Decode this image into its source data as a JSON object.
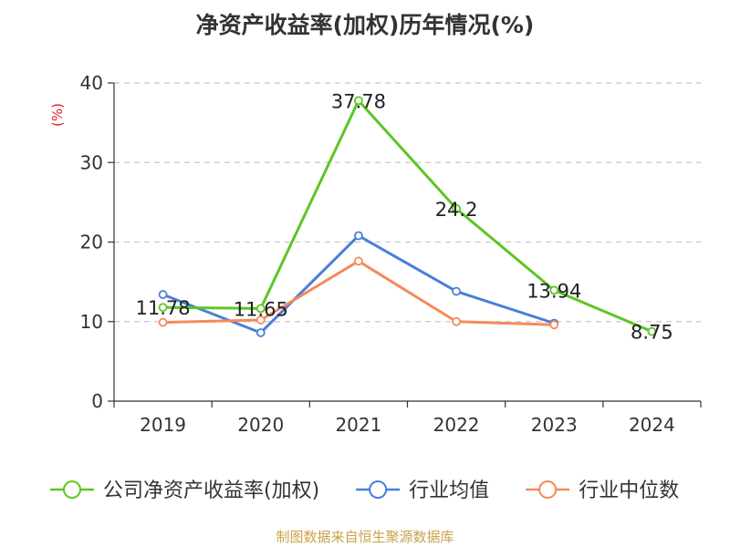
{
  "chart_data": {
    "type": "line",
    "title": "净资产收益率(加权)历年情况(%)",
    "ylabel": "(%)",
    "categories": [
      "2019",
      "2020",
      "2021",
      "2022",
      "2023",
      "2024"
    ],
    "ylim": [
      0,
      40
    ],
    "yticks": [
      0,
      10,
      20,
      30,
      40
    ],
    "grid": true,
    "legend_position": "bottom",
    "series": [
      {
        "name": "公司净资产收益率(加权)",
        "color": "#5cc623",
        "values": [
          11.78,
          11.65,
          37.78,
          24.2,
          13.94,
          8.75
        ],
        "labels": [
          "11.78",
          "11.65",
          "37.78",
          "24.2",
          "13.94",
          "8.75"
        ]
      },
      {
        "name": "行业均值",
        "color": "#4a7fd9",
        "values": [
          13.4,
          8.6,
          20.8,
          13.8,
          9.8,
          null
        ]
      },
      {
        "name": "行业中位数",
        "color": "#f58a5a",
        "values": [
          9.9,
          10.2,
          17.6,
          10.0,
          9.6,
          null
        ]
      }
    ]
  },
  "source": "制图数据来自恒生聚源数据库"
}
